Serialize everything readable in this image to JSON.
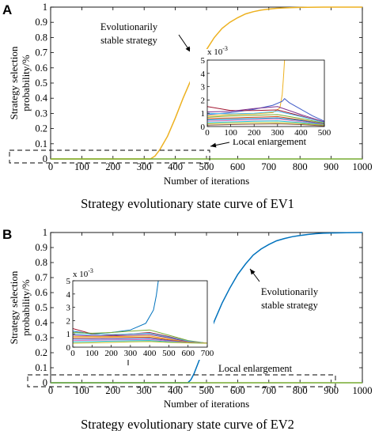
{
  "chart_data": [
    {
      "panel": "A",
      "type": "line",
      "title": "Strategy evolutionary state curve of EV1",
      "xlabel": "Number of iterations",
      "ylabel": "Strategy selection probability/%",
      "xlim": [
        0,
        1000
      ],
      "ylim": [
        0,
        1
      ],
      "xticks": [
        "0",
        "100",
        "200",
        "300",
        "400",
        "500",
        "600",
        "700",
        "800",
        "900",
        "1000"
      ],
      "yticks": [
        "0",
        "0.1",
        "0.2",
        "0.3",
        "0.4",
        "0.5",
        "0.6",
        "0.7",
        "0.8",
        "0.9",
        "1"
      ],
      "series": [
        {
          "color": "#EDB120",
          "role": "stable",
          "x": [
            0,
            320,
            335,
            350,
            375,
            400,
            425,
            450,
            475,
            500,
            525,
            550,
            575,
            600,
            625,
            650,
            675,
            700,
            725,
            750,
            775,
            800,
            825,
            850,
            875,
            900,
            1000
          ],
          "y": [
            0,
            0,
            0.02,
            0.06,
            0.15,
            0.27,
            0.4,
            0.52,
            0.63,
            0.72,
            0.8,
            0.86,
            0.9,
            0.93,
            0.955,
            0.97,
            0.98,
            0.987,
            0.992,
            0.995,
            0.997,
            0.998,
            0.999,
            0.9995,
            1,
            1,
            1
          ]
        },
        {
          "color": "#77AC30",
          "role": "flat",
          "x": [
            0,
            1000
          ],
          "y": [
            0,
            0
          ]
        }
      ],
      "annotations": {
        "stable": "Evolutionarily stable strategy",
        "local": "Local enlargement"
      },
      "inset": {
        "xlim": [
          0,
          500
        ],
        "ylim": [
          0,
          5
        ],
        "scale_label": "x 10",
        "scale_exp": "-3",
        "xticks": [
          "0",
          "100",
          "200",
          "300",
          "400",
          "500"
        ],
        "yticks": [
          "0",
          "1",
          "2",
          "3",
          "4",
          "5"
        ],
        "series": [
          {
            "color": "#EDB120",
            "x": [
              0,
              100,
              200,
              280,
              310,
              320,
              325,
              330
            ],
            "y": [
              0.8,
              0.9,
              0.95,
              1.05,
              1.4,
              2.4,
              3.6,
              5
            ]
          },
          {
            "color": "#3F5BC8",
            "x": [
              0,
              100,
              200,
              280,
              320,
              330,
              350,
              400,
              450,
              500
            ],
            "y": [
              0.9,
              1.05,
              1.3,
              1.6,
              1.9,
              2.1,
              1.8,
              1.3,
              0.8,
              0.4
            ]
          },
          {
            "color": "#A2142F",
            "x": [
              0,
              100,
              200,
              300,
              400,
              500
            ],
            "y": [
              1.5,
              1.2,
              1.2,
              1.25,
              0.8,
              0.3
            ]
          },
          {
            "color": "#7E2F8E",
            "x": [
              0,
              100,
              200,
              300,
              400,
              500
            ],
            "y": [
              1.1,
              1.15,
              1.35,
              1.5,
              0.9,
              0.35
            ]
          },
          {
            "color": "#4DBEEE",
            "x": [
              0,
              100,
              200,
              300,
              400,
              500
            ],
            "y": [
              1.0,
              0.95,
              1.0,
              1.15,
              0.75,
              0.3
            ]
          },
          {
            "color": "#77AC30",
            "x": [
              0,
              100,
              200,
              300,
              400,
              500
            ],
            "y": [
              0.7,
              0.8,
              0.85,
              0.9,
              0.6,
              0.25
            ]
          },
          {
            "color": "#D95319",
            "x": [
              0,
              100,
              200,
              300,
              400,
              500
            ],
            "y": [
              0.6,
              0.65,
              0.7,
              0.75,
              0.5,
              0.2
            ]
          },
          {
            "color": "#0072BD",
            "x": [
              0,
              100,
              200,
              300,
              400,
              500
            ],
            "y": [
              0.5,
              0.55,
              0.6,
              0.65,
              0.45,
              0.18
            ]
          },
          {
            "color": "#E377C2",
            "x": [
              0,
              100,
              200,
              300,
              400,
              500
            ],
            "y": [
              0.4,
              0.45,
              0.5,
              0.55,
              0.38,
              0.15
            ]
          },
          {
            "color": "#17BECF",
            "x": [
              0,
              100,
              200,
              300,
              400,
              500
            ],
            "y": [
              0.3,
              0.35,
              0.4,
              0.42,
              0.3,
              0.12
            ]
          },
          {
            "color": "#BCBD22",
            "x": [
              0,
              100,
              200,
              300,
              400,
              500
            ],
            "y": [
              0.2,
              0.25,
              0.28,
              0.3,
              0.22,
              0.1
            ]
          },
          {
            "color": "#8C564B",
            "x": [
              0,
              100,
              200,
              300,
              400,
              500
            ],
            "y": [
              0.1,
              0.15,
              0.18,
              0.2,
              0.15,
              0.05
            ]
          }
        ]
      }
    },
    {
      "panel": "B",
      "type": "line",
      "title": "Strategy evolutionary state curve of EV2",
      "xlabel": "Number of iterations",
      "ylabel": "Strategy selection probability/%",
      "xlim": [
        0,
        1000
      ],
      "ylim": [
        0,
        1
      ],
      "xticks": [
        "0",
        "100",
        "200",
        "300",
        "400",
        "500",
        "600",
        "700",
        "800",
        "900",
        "1000"
      ],
      "yticks": [
        "0",
        "0.1",
        "0.2",
        "0.3",
        "0.4",
        "0.5",
        "0.6",
        "0.7",
        "0.8",
        "0.9",
        "1"
      ],
      "series": [
        {
          "color": "#0072BD",
          "role": "stable",
          "x": [
            0,
            440,
            450,
            460,
            475,
            500,
            525,
            550,
            575,
            600,
            625,
            650,
            675,
            700,
            725,
            750,
            775,
            800,
            825,
            850,
            875,
            900,
            950,
            1000
          ],
          "y": [
            0,
            0,
            0.02,
            0.06,
            0.14,
            0.28,
            0.41,
            0.53,
            0.63,
            0.72,
            0.79,
            0.85,
            0.89,
            0.92,
            0.945,
            0.96,
            0.972,
            0.98,
            0.987,
            0.992,
            0.995,
            0.997,
            0.999,
            1
          ]
        },
        {
          "color": "#77AC30",
          "role": "flat",
          "x": [
            0,
            1000
          ],
          "y": [
            0,
            0
          ]
        }
      ],
      "annotations": {
        "stable": "Evolutionarily stable strategy",
        "local": "Local enlargement"
      },
      "inset": {
        "xlim": [
          0,
          700
        ],
        "ylim": [
          0,
          5
        ],
        "scale_label": "x 10",
        "scale_exp": "-3",
        "xticks": [
          "0",
          "100",
          "200",
          "300",
          "400",
          "500",
          "600",
          "700"
        ],
        "yticks": [
          "0",
          "1",
          "2",
          "3",
          "4",
          "5"
        ],
        "series": [
          {
            "color": "#0072BD",
            "x": [
              0,
              100,
              200,
              300,
              380,
              420,
              435,
              445
            ],
            "y": [
              1.2,
              1.0,
              1.1,
              1.3,
              1.8,
              2.8,
              3.9,
              5
            ]
          },
          {
            "color": "#A2142F",
            "x": [
              0,
              100,
              200,
              300,
              400,
              500,
              600,
              700
            ],
            "y": [
              1.4,
              1.0,
              0.9,
              1.0,
              1.1,
              0.8,
              0.45,
              0.3
            ]
          },
          {
            "color": "#77AC30",
            "x": [
              0,
              100,
              200,
              300,
              400,
              500,
              600,
              700
            ],
            "y": [
              1.1,
              1.05,
              1.1,
              1.2,
              1.3,
              0.9,
              0.5,
              0.3
            ]
          },
          {
            "color": "#4DBEEE",
            "x": [
              0,
              100,
              200,
              300,
              400,
              500,
              600,
              700
            ],
            "y": [
              1.0,
              0.95,
              0.95,
              1.0,
              1.05,
              0.75,
              0.45,
              0.3
            ]
          },
          {
            "color": "#7E2F8E",
            "x": [
              0,
              100,
              200,
              300,
              400,
              500,
              600,
              700
            ],
            "y": [
              0.9,
              0.85,
              0.85,
              0.9,
              0.95,
              0.7,
              0.4,
              0.3
            ]
          },
          {
            "color": "#EDB120",
            "x": [
              0,
              100,
              200,
              300,
              400,
              500,
              600,
              700
            ],
            "y": [
              0.8,
              0.8,
              0.8,
              0.82,
              0.85,
              0.6,
              0.38,
              0.3
            ]
          },
          {
            "color": "#D95319",
            "x": [
              0,
              100,
              200,
              300,
              400,
              500,
              600,
              700
            ],
            "y": [
              0.7,
              0.7,
              0.72,
              0.74,
              0.75,
              0.55,
              0.36,
              0.3
            ]
          },
          {
            "color": "#3F5BC8",
            "x": [
              0,
              100,
              200,
              300,
              400,
              500,
              600,
              700
            ],
            "y": [
              0.6,
              0.6,
              0.62,
              0.64,
              0.66,
              0.5,
              0.35,
              0.3
            ]
          },
          {
            "color": "#E377C2",
            "x": [
              0,
              100,
              200,
              300,
              400,
              500,
              600,
              700
            ],
            "y": [
              0.5,
              0.52,
              0.54,
              0.56,
              0.58,
              0.45,
              0.34,
              0.3
            ]
          },
          {
            "color": "#17BECF",
            "x": [
              0,
              100,
              200,
              300,
              400,
              500,
              600,
              700
            ],
            "y": [
              0.4,
              0.42,
              0.45,
              0.48,
              0.5,
              0.4,
              0.33,
              0.3
            ]
          },
          {
            "color": "#BCBD22",
            "x": [
              0,
              100,
              200,
              300,
              400,
              500,
              600,
              700
            ],
            "y": [
              0.3,
              0.33,
              0.36,
              0.4,
              0.42,
              0.36,
              0.32,
              0.3
            ]
          }
        ]
      }
    }
  ]
}
